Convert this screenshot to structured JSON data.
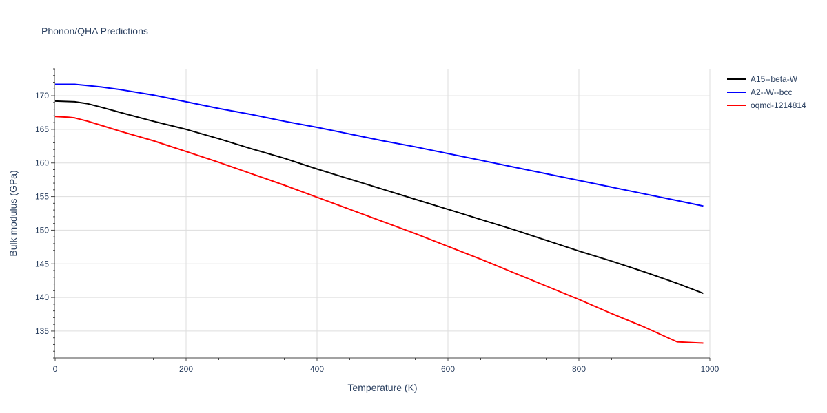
{
  "chart_data": {
    "type": "line",
    "title": "Phonon/QHA Predictions",
    "xlabel": "Temperature (K)",
    "ylabel": "Bulk modulus (GPa)",
    "xlim": [
      0,
      1000
    ],
    "ylim": [
      131,
      174
    ],
    "xticks": [
      0,
      200,
      400,
      600,
      800,
      1000
    ],
    "yticks": [
      135,
      140,
      145,
      150,
      155,
      160,
      165,
      170
    ],
    "grid": true,
    "legend_position": "top-right",
    "series": [
      {
        "name": "A15--beta-W",
        "color": "#000000",
        "x": [
          0,
          30,
          50,
          70,
          100,
          150,
          200,
          250,
          300,
          350,
          400,
          450,
          500,
          550,
          600,
          650,
          700,
          750,
          800,
          850,
          900,
          950,
          990
        ],
        "y": [
          169.2,
          169.1,
          168.8,
          168.3,
          167.5,
          166.2,
          165.0,
          163.6,
          162.1,
          160.7,
          159.1,
          157.6,
          156.1,
          154.6,
          153.1,
          151.6,
          150.1,
          148.5,
          146.9,
          145.4,
          143.8,
          142.1,
          140.6
        ]
      },
      {
        "name": "A2--W--bcc",
        "color": "#0000ff",
        "x": [
          0,
          30,
          50,
          70,
          100,
          150,
          200,
          250,
          300,
          350,
          400,
          450,
          500,
          550,
          600,
          650,
          700,
          750,
          800,
          850,
          900,
          950,
          990
        ],
        "y": [
          171.7,
          171.7,
          171.5,
          171.3,
          170.9,
          170.1,
          169.1,
          168.1,
          167.2,
          166.2,
          165.3,
          164.3,
          163.3,
          162.4,
          161.4,
          160.4,
          159.4,
          158.4,
          157.4,
          156.4,
          155.4,
          154.4,
          153.6
        ]
      },
      {
        "name": "oqmd-1214814",
        "color": "#ff0000",
        "x": [
          0,
          20,
          30,
          50,
          70,
          100,
          150,
          200,
          250,
          300,
          350,
          400,
          450,
          500,
          550,
          600,
          650,
          700,
          750,
          800,
          850,
          900,
          950,
          990
        ],
        "y": [
          166.9,
          166.8,
          166.7,
          166.2,
          165.6,
          164.7,
          163.3,
          161.7,
          160.1,
          158.4,
          156.7,
          154.9,
          153.1,
          151.3,
          149.5,
          147.6,
          145.7,
          143.7,
          141.7,
          139.7,
          137.6,
          135.6,
          133.4,
          133.2
        ]
      }
    ]
  }
}
